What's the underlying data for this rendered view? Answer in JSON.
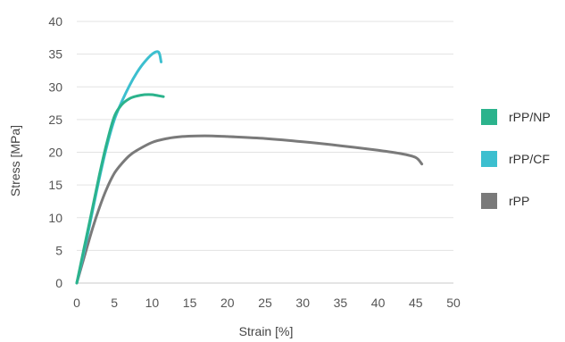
{
  "chart_data": {
    "type": "line",
    "xlabel": "Strain [%]",
    "ylabel": "Stress [MPa]",
    "xlim": [
      0,
      50
    ],
    "ylim": [
      0,
      40
    ],
    "xticks": [
      0,
      5,
      10,
      15,
      20,
      25,
      30,
      35,
      40,
      45,
      50
    ],
    "yticks": [
      0,
      5,
      10,
      15,
      20,
      25,
      30,
      35,
      40
    ],
    "grid": "horizontal",
    "legend_position": "right",
    "series": [
      {
        "name": "rPP/NP",
        "color": "#2bb38c",
        "x": [
          0,
          1,
          2,
          3,
          4,
          5,
          6,
          7,
          8,
          9,
          10,
          11.5
        ],
        "y": [
          0,
          5.5,
          11,
          16.5,
          21.5,
          25.5,
          27.3,
          28.2,
          28.6,
          28.8,
          28.8,
          28.5
        ]
      },
      {
        "name": "rPP/CF",
        "color": "#3cbfcf",
        "x": [
          0,
          1,
          2,
          3,
          4,
          5,
          6,
          7,
          8,
          9,
          10,
          10.7,
          11,
          11.2
        ],
        "y": [
          0,
          5,
          10.5,
          16,
          21,
          25,
          27.8,
          30.2,
          32.2,
          33.8,
          35.0,
          35.4,
          35.0,
          33.8
        ]
      },
      {
        "name": "rPP",
        "color": "#7a7a7a",
        "x": [
          0,
          1,
          2,
          3,
          4,
          5,
          6,
          7,
          8,
          10,
          12,
          14,
          16,
          18,
          20,
          25,
          30,
          35,
          40,
          43,
          45,
          45.8
        ],
        "y": [
          0,
          4,
          8,
          11.5,
          14.5,
          16.8,
          18.3,
          19.5,
          20.3,
          21.5,
          22.1,
          22.4,
          22.5,
          22.5,
          22.4,
          22.1,
          21.6,
          21.0,
          20.3,
          19.8,
          19.2,
          18.2
        ]
      }
    ]
  }
}
